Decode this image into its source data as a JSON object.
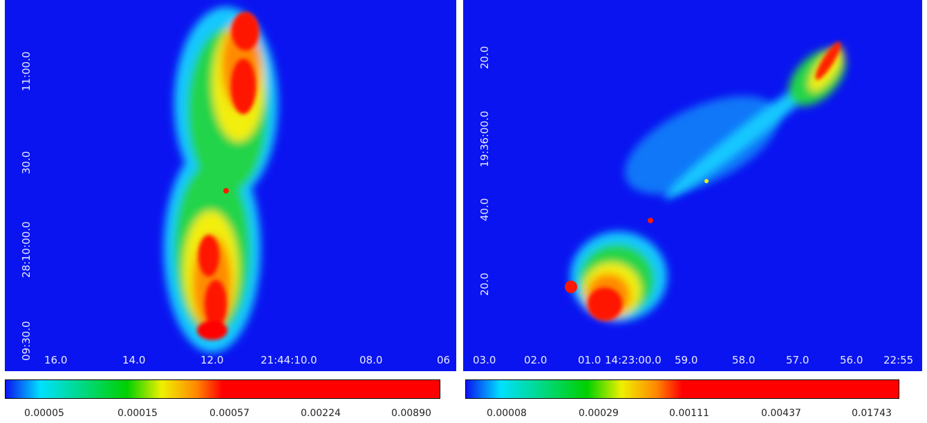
{
  "left_panel": {
    "x_ticks": [
      "16.0",
      "14.0",
      "12.0",
      "21:44:10.0",
      "08.0",
      "06"
    ],
    "y_ticks": [
      "11:00.0",
      "30.0",
      "28:10:00.0",
      "09:30.0"
    ],
    "colorbar": {
      "labels": [
        "0.00005",
        "0.00015",
        "0.00057",
        "0.00224",
        "0.00890"
      ],
      "colors": [
        "#0a14f0",
        "#00e0ff",
        "#00d000",
        "#f0f000",
        "#ff8800",
        "#ff0000"
      ]
    }
  },
  "right_panel": {
    "x_ticks": [
      "03.0",
      "02.0",
      "01.0",
      "14:23:00.0",
      "59.0",
      "58.0",
      "57.0",
      "56.0",
      "22:55"
    ],
    "y_ticks": [
      "20.0",
      "19:36:00.0",
      "40.0",
      "20.0"
    ],
    "colorbar": {
      "labels": [
        "0.00008",
        "0.00029",
        "0.00111",
        "0.00437",
        "0.01743"
      ],
      "colors": [
        "#0a14f0",
        "#00e0ff",
        "#00d000",
        "#f0f000",
        "#ff8800",
        "#ff0000"
      ]
    }
  }
}
